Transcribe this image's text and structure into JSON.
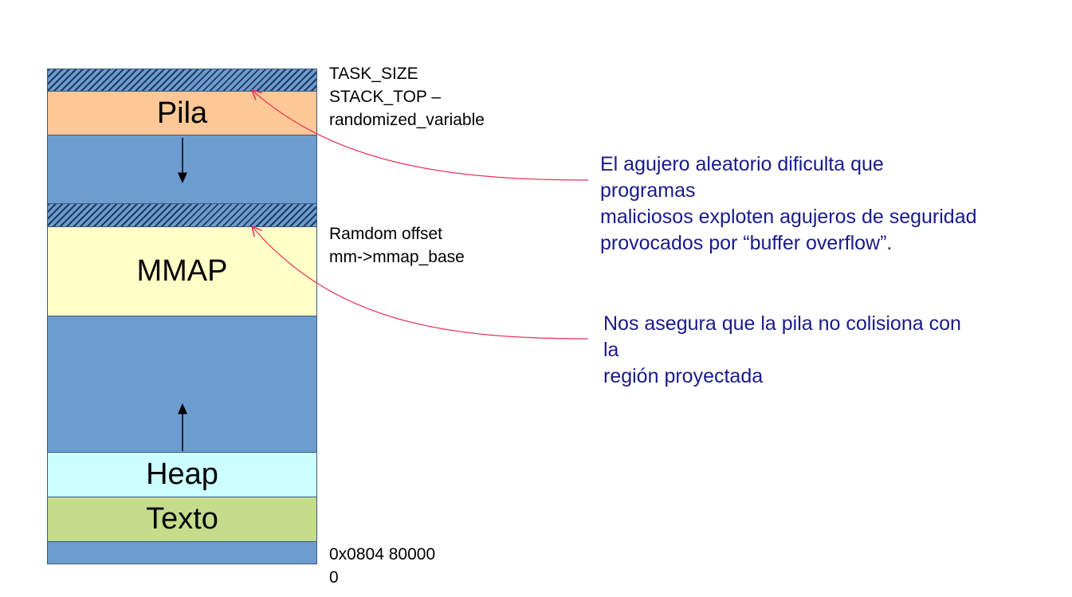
{
  "memory_map": {
    "regions": {
      "stack": "Pila",
      "mmap": "MMAP",
      "heap": "Heap",
      "text": "Texto"
    },
    "colors": {
      "stack": "#ffc896",
      "free": "#6d9ccf",
      "mmap": "#ffffc8",
      "heap": "#ccffff",
      "text": "#c4dc8c",
      "arrow_note": "#e8305a",
      "note_text": "#1a1a8c"
    }
  },
  "side_labels": {
    "top": "TASK_SIZE\nSTACK_TOP –\nrandomized_variable",
    "mmap": "Ramdom offset\nmm->mmap_base",
    "bottom": "0x0804 80000\n0"
  },
  "notes": {
    "stack_gap": "El agujero aleatorio dificulta que\nprogramas\nmaliciosos exploten agujeros de seguridad\nprovocados por “buffer overflow”.",
    "mmap_gap": "Nos asegura que la pila no colisiona con\nla\nregión proyectada"
  }
}
